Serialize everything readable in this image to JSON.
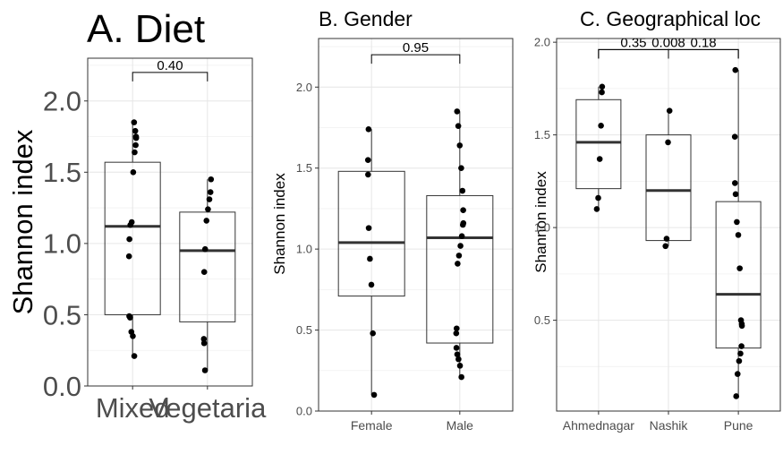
{
  "chart_data": [
    {
      "type": "boxplot",
      "title": "A. Diet",
      "ylabel": "Shannon index",
      "xlabel": "",
      "ylim": [
        0,
        2.3
      ],
      "yticks": [
        0.0,
        0.5,
        1.0,
        1.5,
        2.0
      ],
      "ytick_labels": [
        "0.0",
        "0.5",
        "1.0",
        "1.5",
        "2.0"
      ],
      "categories": [
        "Mixed",
        "Vegetarian"
      ],
      "category_labels": [
        "Mixed",
        "Vegetaria"
      ],
      "grid": true,
      "boxes": [
        {
          "q1": 0.5,
          "median": 1.12,
          "q3": 1.57,
          "whisker_low": 0.21,
          "whisker_high": 1.85
        },
        {
          "q1": 0.45,
          "median": 0.95,
          "q3": 1.22,
          "whisker_low": 0.11,
          "whisker_high": 1.45
        }
      ],
      "points": [
        [
          1.85,
          1.79,
          1.75,
          1.74,
          1.69,
          1.64,
          1.5,
          1.15,
          1.13,
          1.03,
          0.91,
          0.49,
          0.48,
          0.38,
          0.35,
          0.21
        ],
        [
          1.45,
          1.36,
          1.31,
          1.24,
          1.16,
          0.96,
          0.8,
          0.33,
          0.3,
          0.11
        ]
      ],
      "comparisons": [
        {
          "pair": [
            0,
            1
          ],
          "label": "0.40",
          "y": 2.2
        }
      ]
    },
    {
      "type": "boxplot",
      "title": "B. Gender",
      "ylabel": "Shannon index",
      "xlabel": "",
      "ylim": [
        0,
        2.3
      ],
      "yticks": [
        0.0,
        0.5,
        1.0,
        1.5,
        2.0
      ],
      "ytick_labels": [
        "0.0",
        "0.5",
        "1.0",
        "1.5",
        "2.0"
      ],
      "categories": [
        "Female",
        "Male"
      ],
      "category_labels": [
        "Female",
        "Male"
      ],
      "grid": true,
      "boxes": [
        {
          "q1": 0.71,
          "median": 1.04,
          "q3": 1.48,
          "whisker_low": 0.1,
          "whisker_high": 1.74
        },
        {
          "q1": 0.42,
          "median": 1.07,
          "q3": 1.33,
          "whisker_low": 0.21,
          "whisker_high": 1.85
        }
      ],
      "points": [
        [
          1.74,
          1.55,
          1.46,
          1.13,
          0.94,
          0.78,
          0.48,
          0.1
        ],
        [
          1.85,
          1.76,
          1.64,
          1.5,
          1.36,
          1.24,
          1.16,
          1.15,
          1.08,
          1.02,
          0.96,
          0.91,
          0.51,
          0.48,
          0.39,
          0.35,
          0.32,
          0.28,
          0.21
        ]
      ],
      "comparisons": [
        {
          "pair": [
            0,
            1
          ],
          "label": "0.95",
          "y": 2.2
        }
      ]
    },
    {
      "type": "boxplot",
      "title": "C. Geographical loc",
      "ylabel": "Shannon index",
      "xlabel": "",
      "ylim": [
        0.01,
        2.02
      ],
      "yticks": [
        0.5,
        1.0,
        1.5,
        2.0
      ],
      "ytick_labels": [
        "0.5",
        "1.0",
        "1.5",
        "2.0"
      ],
      "categories": [
        "Ahmednagar",
        "Nashik",
        "Pune"
      ],
      "category_labels": [
        "Ahmednagar",
        "Nashik",
        "Pune"
      ],
      "grid": true,
      "boxes": [
        {
          "q1": 1.21,
          "median": 1.46,
          "q3": 1.69,
          "whisker_low": 1.1,
          "whisker_high": 1.76
        },
        {
          "q1": 0.93,
          "median": 1.2,
          "q3": 1.5,
          "whisker_low": 0.9,
          "whisker_high": 1.63
        },
        {
          "q1": 0.35,
          "median": 0.64,
          "q3": 1.14,
          "whisker_low": 0.09,
          "whisker_high": 1.85
        }
      ],
      "points": [
        [
          1.76,
          1.73,
          1.55,
          1.37,
          1.16,
          1.1
        ],
        [
          1.63,
          1.46,
          0.94,
          0.9
        ],
        [
          1.85,
          1.49,
          1.24,
          1.18,
          1.03,
          0.96,
          0.78,
          0.5,
          0.48,
          0.47,
          0.36,
          0.32,
          0.28,
          0.21,
          0.09
        ]
      ],
      "comparisons": [
        {
          "pair": [
            0,
            1
          ],
          "label": "0.35",
          "y": 1.96
        },
        {
          "pair": [
            0,
            2
          ],
          "label": "0.008",
          "y": 1.96
        },
        {
          "pair": [
            1,
            2
          ],
          "label": "0.18",
          "y": 1.96
        }
      ]
    }
  ]
}
